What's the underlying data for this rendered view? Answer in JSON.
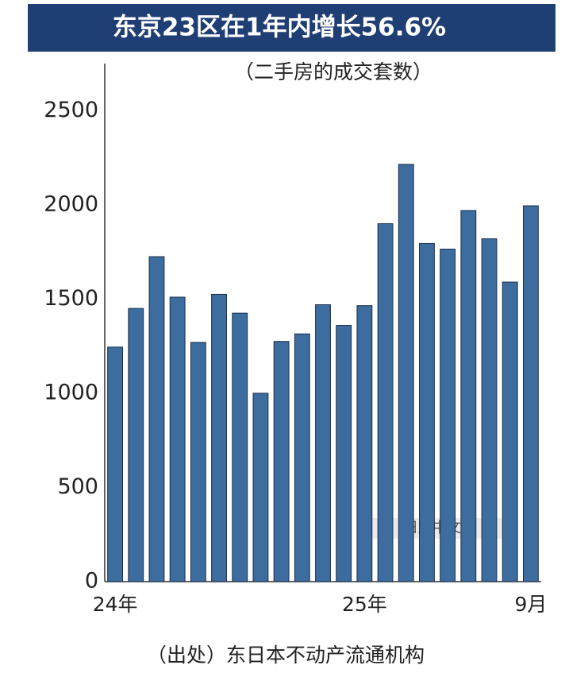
{
  "chart_data": {
    "type": "bar",
    "title": "东京23区在1年内增长56.6%",
    "subtitle": "（二手房的成交套数）",
    "source": "（出处）东日本不动产流通机构",
    "watermark": "日経中文网",
    "categories": [
      "24年",
      null,
      null,
      null,
      null,
      null,
      null,
      null,
      null,
      null,
      null,
      null,
      "25年",
      null,
      null,
      null,
      null,
      null,
      null,
      null,
      "9月"
    ],
    "values": [
      1245,
      1450,
      1725,
      1510,
      1270,
      1525,
      1425,
      1000,
      1275,
      1315,
      1470,
      1360,
      1465,
      1900,
      2215,
      1795,
      1765,
      1970,
      1820,
      1590,
      1995
    ],
    "color": "#3d6c9e",
    "ylim": [
      0,
      2750
    ],
    "yticks": [
      0,
      500,
      1000,
      1500,
      2000,
      2500
    ],
    "grid": false
  }
}
